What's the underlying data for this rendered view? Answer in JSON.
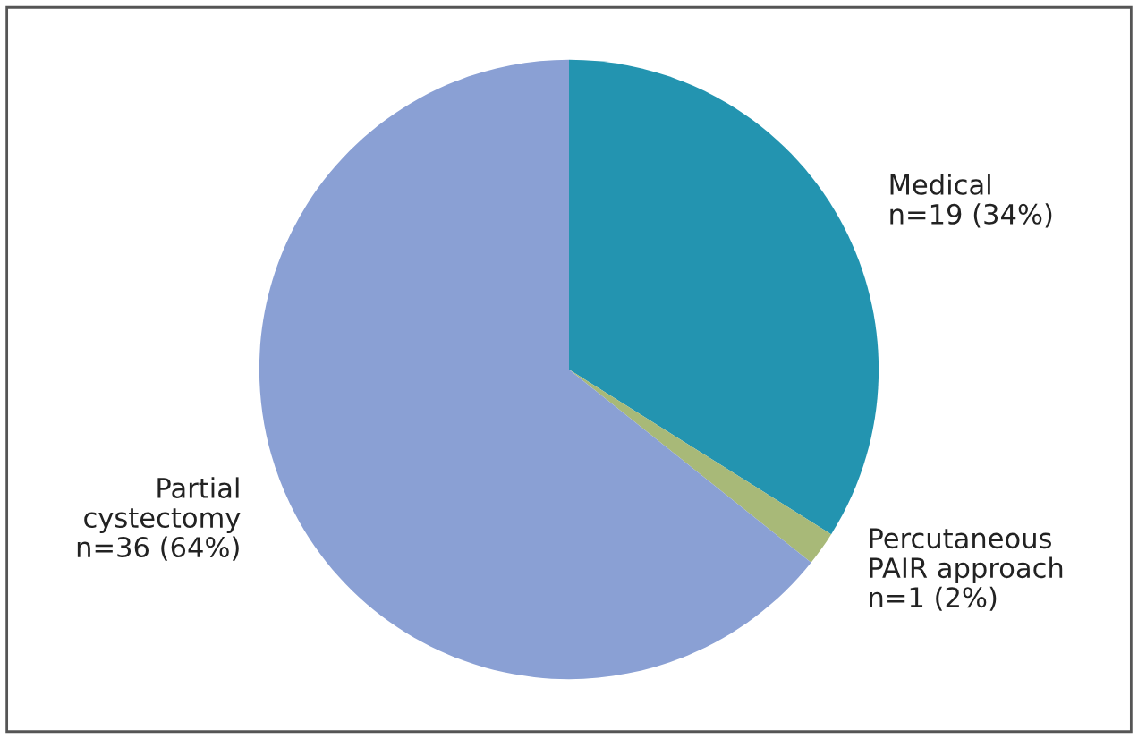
{
  "chart_data": {
    "type": "pie",
    "categories": [
      "Medical",
      "Percutaneous\nPAIR approach",
      "Partial\ncystectomy"
    ],
    "values": [
      19,
      1,
      36
    ],
    "value_labels": [
      "n=19 (34%)",
      "n=1 (2%)",
      "n=36 (64%)"
    ],
    "colors": [
      "#2394b0",
      "#a8b978",
      "#8aa0d4"
    ],
    "legend": false
  }
}
